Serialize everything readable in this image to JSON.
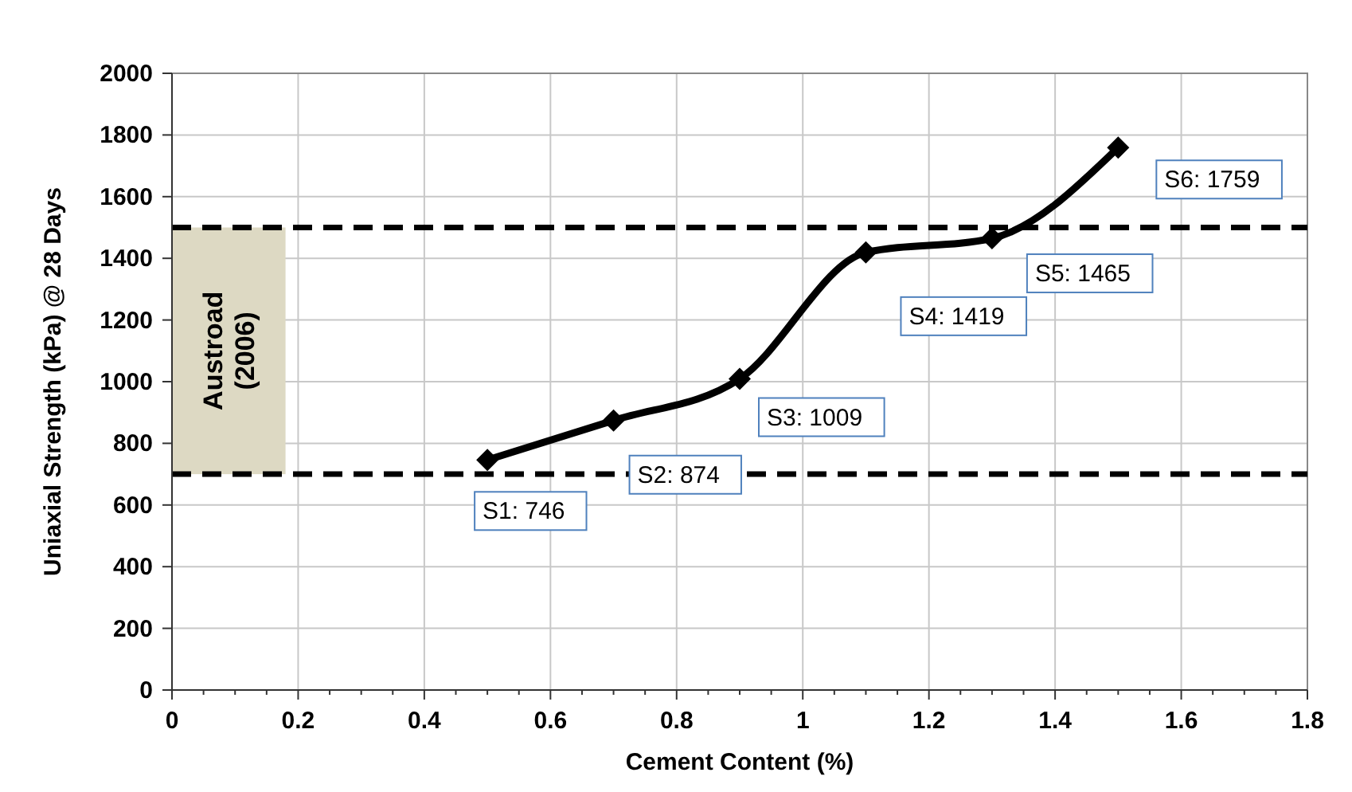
{
  "chart_data": {
    "type": "line",
    "xlabel": "Cement Content (%)",
    "ylabel": "Uniaxial Strength  (kPa) @ 28 Days",
    "x": [
      0.5,
      0.7,
      0.9,
      1.1,
      1.3,
      1.5
    ],
    "series": [
      {
        "color": "#000000",
        "values": [
          746,
          874,
          1009,
          1419,
          1465,
          1759
        ]
      }
    ],
    "xlim": [
      0,
      1.8
    ],
    "xticks": [
      0,
      0.2,
      0.4,
      0.6,
      0.8,
      1,
      1.2,
      1.4,
      1.6,
      1.8
    ],
    "ylim": [
      0,
      2000
    ],
    "yticks": [
      0,
      200,
      400,
      600,
      800,
      1000,
      1200,
      1400,
      1600,
      1800,
      2000
    ],
    "grid": true,
    "marker": "diamond",
    "line_style": "solid",
    "ref_lines": [
      {
        "axis": "y",
        "value": 700,
        "line_style": "dashed",
        "color": "#000000"
      },
      {
        "axis": "y",
        "value": 1500,
        "line_style": "dashed",
        "color": "#000000"
      }
    ],
    "bands": [
      {
        "axis": "y",
        "from": 700,
        "to": 1500,
        "label": "Austroad (2006)",
        "color": "#ddd9c3"
      }
    ],
    "annotations": [
      {
        "text": "S1: 746",
        "x": 0.5,
        "y": 746
      },
      {
        "text": "S2: 874",
        "x": 0.7,
        "y": 874
      },
      {
        "text": "S3: 1009",
        "x": 0.9,
        "y": 1009
      },
      {
        "text": "S4: 1419",
        "x": 1.1,
        "y": 1419
      },
      {
        "text": "S5: 1465",
        "x": 1.3,
        "y": 1465
      },
      {
        "text": "S6: 1759",
        "x": 1.5,
        "y": 1759
      }
    ]
  }
}
